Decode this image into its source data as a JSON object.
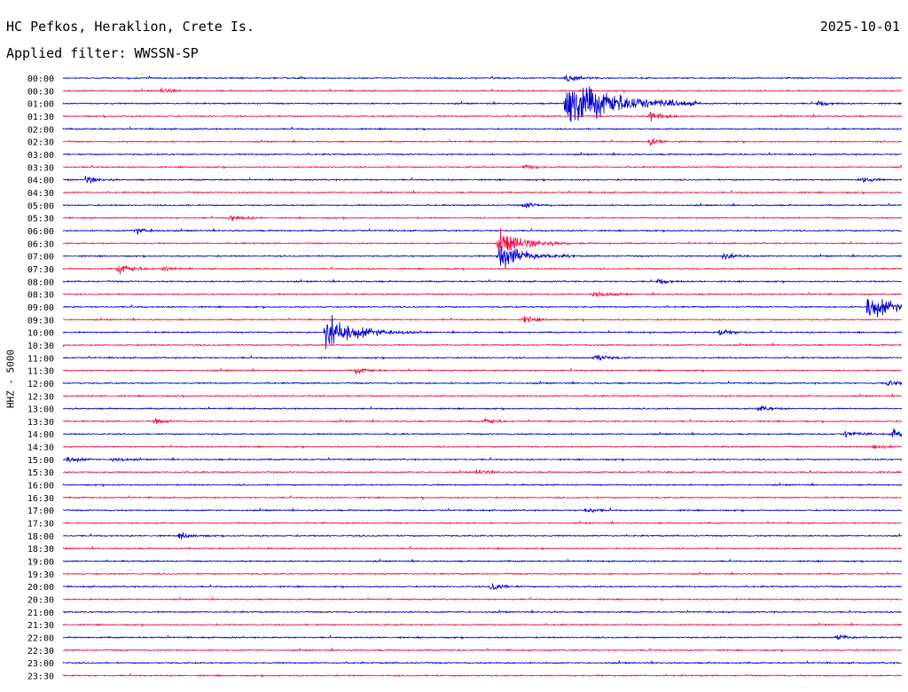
{
  "header": {
    "station": "HC Pefkos, Heraklion, Crete Is.",
    "date": "2025-10-01",
    "filter_label": "Applied filter: WWSSN-SP",
    "channel_label": "HHZ - 5000"
  },
  "colors": {
    "trace_a": "#0000cc",
    "trace_b": "#ee1144"
  },
  "chart_data": {
    "type": "line",
    "title": "HC Pefkos, Heraklion, Crete Is.",
    "subtitle": "Applied filter: WWSSN-SP",
    "ylabel": "HHZ - 5000",
    "xlabel": "",
    "row_labels": [
      "00:00",
      "00:30",
      "01:00",
      "01:30",
      "02:00",
      "02:30",
      "03:00",
      "03:30",
      "04:00",
      "04:30",
      "05:00",
      "05:30",
      "06:00",
      "06:30",
      "07:00",
      "07:30",
      "08:00",
      "08:30",
      "09:00",
      "09:30",
      "10:00",
      "10:30",
      "11:00",
      "11:30",
      "12:00",
      "12:30",
      "13:00",
      "13:30",
      "14:00",
      "14:30",
      "15:00",
      "15:30",
      "16:00",
      "16:30",
      "17:00",
      "17:30",
      "18:00",
      "18:30",
      "19:00",
      "19:30",
      "20:00",
      "20:30",
      "21:00",
      "21:30",
      "22:00",
      "22:30",
      "23:00",
      "23:30"
    ],
    "row_minutes": 30,
    "row_colors": [
      "trace_a",
      "trace_b"
    ],
    "events": [
      {
        "row": "00:00",
        "minute": 18.0,
        "amplitude": 0.5
      },
      {
        "row": "00:30",
        "minute": 3.5,
        "amplitude": 0.3
      },
      {
        "row": "01:00",
        "minute": 18.0,
        "amplitude": 2.8
      },
      {
        "row": "01:00",
        "minute": 27.0,
        "amplitude": 0.3
      },
      {
        "row": "01:30",
        "minute": 21.0,
        "amplitude": 0.5
      },
      {
        "row": "02:30",
        "minute": 21.0,
        "amplitude": 0.35
      },
      {
        "row": "03:30",
        "minute": 16.5,
        "amplitude": 0.3
      },
      {
        "row": "04:00",
        "minute": 0.8,
        "amplitude": 0.4
      },
      {
        "row": "04:00",
        "minute": 28.5,
        "amplitude": 0.35
      },
      {
        "row": "05:00",
        "minute": 16.5,
        "amplitude": 0.35
      },
      {
        "row": "05:30",
        "minute": 6.0,
        "amplitude": 0.4
      },
      {
        "row": "06:00",
        "minute": 2.6,
        "amplitude": 0.4
      },
      {
        "row": "06:30",
        "minute": 15.6,
        "amplitude": 1.3
      },
      {
        "row": "07:00",
        "minute": 15.6,
        "amplitude": 1.4
      },
      {
        "row": "07:00",
        "minute": 23.6,
        "amplitude": 0.4
      },
      {
        "row": "07:30",
        "minute": 2.0,
        "amplitude": 0.5
      },
      {
        "row": "07:30",
        "minute": 3.6,
        "amplitude": 0.3
      },
      {
        "row": "08:00",
        "minute": 21.3,
        "amplitude": 0.3
      },
      {
        "row": "08:30",
        "minute": 19.0,
        "amplitude": 0.45
      },
      {
        "row": "09:00",
        "minute": 28.8,
        "amplitude": 1.4
      },
      {
        "row": "09:30",
        "minute": 16.5,
        "amplitude": 0.4
      },
      {
        "row": "10:00",
        "minute": 9.4,
        "amplitude": 1.7
      },
      {
        "row": "10:00",
        "minute": 23.5,
        "amplitude": 0.45
      },
      {
        "row": "11:00",
        "minute": 19.0,
        "amplitude": 0.45
      },
      {
        "row": "11:30",
        "minute": 10.5,
        "amplitude": 0.35
      },
      {
        "row": "12:00",
        "minute": 29.5,
        "amplitude": 0.4
      },
      {
        "row": "13:00",
        "minute": 24.9,
        "amplitude": 0.35
      },
      {
        "row": "13:30",
        "minute": 3.3,
        "amplitude": 0.3
      },
      {
        "row": "13:30",
        "minute": 15.1,
        "amplitude": 0.3
      },
      {
        "row": "14:00",
        "minute": 28.0,
        "amplitude": 0.4
      },
      {
        "row": "14:00",
        "minute": 29.7,
        "amplitude": 0.5
      },
      {
        "row": "14:30",
        "minute": 29.0,
        "amplitude": 0.3
      },
      {
        "row": "15:00",
        "minute": 0.2,
        "amplitude": 0.35
      },
      {
        "row": "15:00",
        "minute": 1.8,
        "amplitude": 0.3
      },
      {
        "row": "15:30",
        "minute": 14.8,
        "amplitude": 0.3
      },
      {
        "row": "17:00",
        "minute": 18.7,
        "amplitude": 0.3
      },
      {
        "row": "18:00",
        "minute": 4.2,
        "amplitude": 0.35
      },
      {
        "row": "20:00",
        "minute": 15.3,
        "amplitude": 0.4
      },
      {
        "row": "22:00",
        "minute": 27.7,
        "amplitude": 0.4
      }
    ]
  }
}
